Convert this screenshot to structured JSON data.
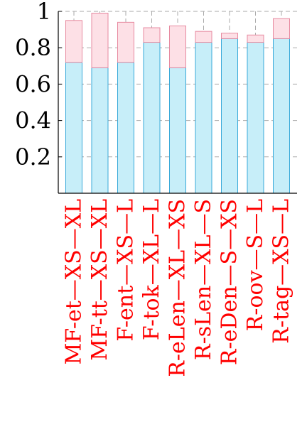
{
  "chart_data": {
    "type": "bar",
    "stacked": true,
    "title": "",
    "xlabel": "",
    "ylabel": "",
    "ylim": [
      0,
      1
    ],
    "yticks": [
      {
        "value": 0.2,
        "label": "0.2"
      },
      {
        "value": 0.4,
        "label": "0.4"
      },
      {
        "value": 0.6,
        "label": "0.6"
      },
      {
        "value": 0.8,
        "label": "0.8"
      },
      {
        "value": 1,
        "label": "1"
      }
    ],
    "grid": true,
    "categories": [
      "MF-et—XS—XL",
      "MF-tt—XS—XL",
      "F-ent—XS—L",
      "F-tok—XL—L",
      "R-eLen—XL—XS",
      "R-sLen—XL—S",
      "R-eDen—S—XS",
      "R-oov—S—L",
      "R-tag—XS—L"
    ],
    "series": [
      {
        "values": [
          0.72,
          0.69,
          0.72,
          0.83,
          0.69,
          0.83,
          0.85,
          0.83,
          0.85
        ]
      },
      {
        "values": [
          0.23,
          0.3,
          0.22,
          0.08,
          0.23,
          0.06,
          0.03,
          0.04,
          0.11
        ]
      }
    ],
    "colors": {
      "bottom_fill": "#c7eef9",
      "bottom_stroke": "#39a9d9",
      "top_fill": "#fde0e6",
      "top_stroke": "#e78aa0",
      "tick_label_x": "#ff0000",
      "tick_label_y": "#000000",
      "grid": "#aaaaaa"
    }
  }
}
